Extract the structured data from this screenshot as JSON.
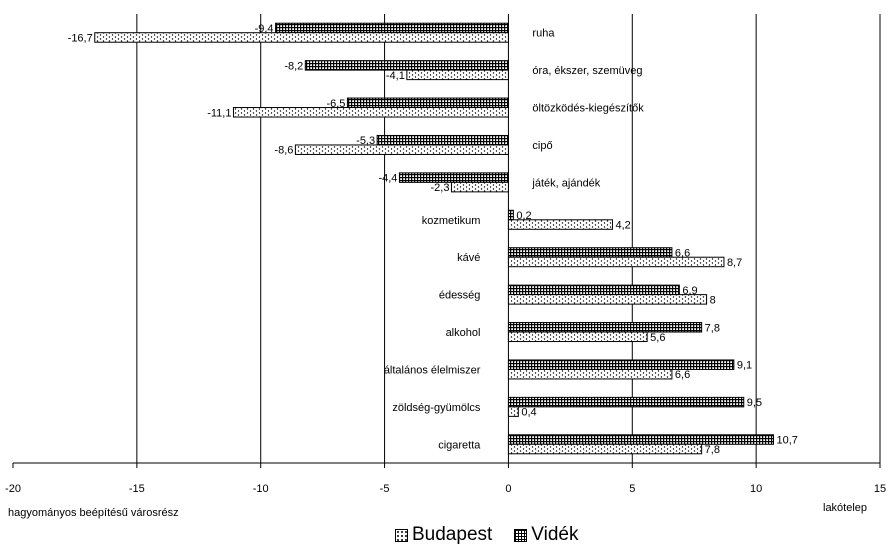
{
  "chart_data": {
    "type": "bar",
    "orientation": "horizontal",
    "categories": [
      "ruha",
      "óra, ékszer, szemüveg",
      "öltözködés-kiegészítők",
      "cipő",
      "játék, ajándék",
      "kozmetikum",
      "kávé",
      "édesség",
      "alkohol",
      "általános élelmiszer",
      "zöldség-gyümölcs",
      "cigaretta"
    ],
    "series": [
      {
        "name": "Vidék",
        "values": [
          -9.4,
          -8.2,
          -6.5,
          -5.3,
          -4.4,
          0.2,
          6.6,
          6.9,
          7.8,
          9.1,
          9.5,
          10.7
        ],
        "labels": [
          "-9,4",
          "-8,2",
          "-6,5",
          "-5,3",
          "-4,4",
          "0,2",
          "6,6",
          "6,9",
          "7,8",
          "9,1",
          "9,5",
          "10,7"
        ],
        "pattern": "grid"
      },
      {
        "name": "Budapest",
        "values": [
          -16.7,
          -4.1,
          -11.1,
          -8.6,
          -2.3,
          4.2,
          8.7,
          8,
          5.6,
          6.6,
          0.4,
          7.8
        ],
        "labels": [
          "-16,7",
          "-4,1",
          "-11,1",
          "-8,6",
          "-2,3",
          "4,2",
          "8,7",
          "8",
          "5,6",
          "6,6",
          "0,4",
          "7,8"
        ],
        "pattern": "dots"
      }
    ],
    "xlim": [
      -20,
      15
    ],
    "xticks": [
      -20,
      -15,
      -10,
      -5,
      0,
      5,
      10,
      15
    ],
    "xtick_labels": [
      "-20",
      "-15",
      "-10",
      "-5",
      "0",
      "5",
      "10",
      "15"
    ],
    "grid": "vertical",
    "left_axis_note": "hagyományos beépítésű városrész",
    "right_axis_note": "lakótelep",
    "legend": {
      "placement": "bottom",
      "items": [
        "Budapest",
        "Vidék"
      ]
    }
  }
}
